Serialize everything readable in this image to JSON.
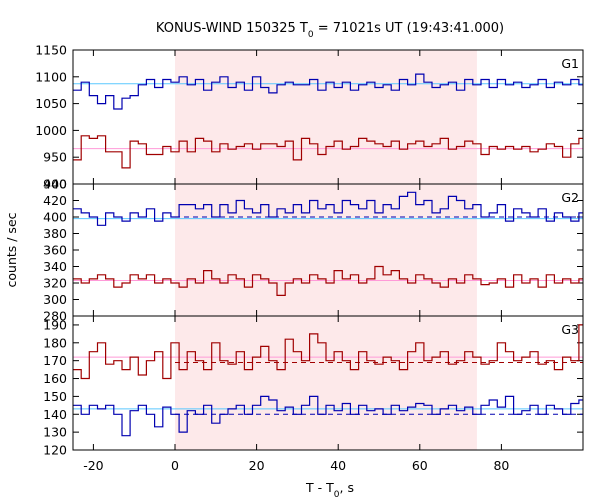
{
  "chart_data": {
    "type": "line",
    "title": "KONUS-WIND 150325 T",
    "title_sub": "0",
    "title_rest": " = 71021s UT (19:43:41.000)",
    "xlabel": "T - T",
    "xlabel_sub": "0",
    "xlabel_rest": ", s",
    "ylabel": "counts / sec",
    "xlim": [
      -25,
      100
    ],
    "x_ticks": [
      -20,
      0,
      20,
      40,
      60,
      80
    ],
    "shaded_interval": [
      0,
      74
    ],
    "colors": {
      "shade": "#fde9ea",
      "red_series": "#a00000",
      "red_background": "#ff9ad8",
      "blue_series": "#0000b0",
      "blue_background": "#5ac8ff"
    },
    "panels": [
      {
        "label": "G1",
        "ylim": [
          900,
          1150
        ],
        "y_ticks": [
          900,
          950,
          1000,
          1050,
          1100,
          1150
        ],
        "series": [
          {
            "color_key": "blue_series",
            "x": [
              -25,
              -23,
              -21,
              -19,
              -17,
              -15,
              -13,
              -11,
              -9,
              -7,
              -5,
              -3,
              -1,
              1,
              3,
              5,
              7,
              9,
              11,
              13,
              15,
              17,
              19,
              21,
              23,
              25,
              27,
              29,
              31,
              33,
              35,
              37,
              39,
              41,
              43,
              45,
              47,
              49,
              51,
              53,
              55,
              57,
              59,
              61,
              63,
              65,
              67,
              69,
              71,
              73,
              75,
              77,
              79,
              81,
              83,
              85,
              87,
              89,
              91,
              93,
              95,
              97,
              99
            ],
            "y": [
              1075,
              1090,
              1065,
              1050,
              1065,
              1040,
              1060,
              1065,
              1085,
              1095,
              1080,
              1095,
              1090,
              1100,
              1085,
              1095,
              1075,
              1090,
              1100,
              1080,
              1090,
              1075,
              1100,
              1080,
              1070,
              1085,
              1090,
              1085,
              1085,
              1095,
              1075,
              1090,
              1080,
              1090,
              1075,
              1085,
              1090,
              1080,
              1085,
              1075,
              1095,
              1085,
              1105,
              1090,
              1080,
              1085,
              1090,
              1075,
              1095,
              1085,
              1095,
              1080,
              1095,
              1085,
              1090,
              1080,
              1085,
              1095,
              1080,
              1090,
              1085,
              1095,
              1085
            ],
            "background": 1087,
            "background_color_key": "blue_background"
          },
          {
            "color_key": "red_series",
            "x": [
              -25,
              -23,
              -21,
              -19,
              -17,
              -15,
              -13,
              -11,
              -9,
              -7,
              -5,
              -3,
              -1,
              1,
              3,
              5,
              7,
              9,
              11,
              13,
              15,
              17,
              19,
              21,
              23,
              25,
              27,
              29,
              31,
              33,
              35,
              37,
              39,
              41,
              43,
              45,
              47,
              49,
              51,
              53,
              55,
              57,
              59,
              61,
              63,
              65,
              67,
              69,
              71,
              73,
              75,
              77,
              79,
              81,
              83,
              85,
              87,
              89,
              91,
              93,
              95,
              97,
              99
            ],
            "y": [
              945,
              990,
              985,
              990,
              960,
              960,
              930,
              980,
              975,
              955,
              955,
              970,
              960,
              980,
              960,
              985,
              980,
              960,
              975,
              965,
              970,
              975,
              965,
              975,
              975,
              970,
              980,
              945,
              985,
              975,
              955,
              970,
              980,
              965,
              970,
              985,
              980,
              975,
              970,
              980,
              965,
              975,
              980,
              970,
              975,
              985,
              965,
              970,
              980,
              975,
              955,
              970,
              965,
              970,
              965,
              970,
              960,
              965,
              975,
              970,
              950,
              975,
              985
            ],
            "background": 966,
            "background_color_key": "red_background"
          }
        ]
      },
      {
        "label": "G2",
        "ylim": [
          280,
          440
        ],
        "y_ticks": [
          280,
          300,
          320,
          340,
          360,
          380,
          400,
          420,
          440
        ],
        "series": [
          {
            "color_key": "blue_series",
            "x": [
              -25,
              -23,
              -21,
              -19,
              -17,
              -15,
              -13,
              -11,
              -9,
              -7,
              -5,
              -3,
              -1,
              1,
              3,
              5,
              7,
              9,
              11,
              13,
              15,
              17,
              19,
              21,
              23,
              25,
              27,
              29,
              31,
              33,
              35,
              37,
              39,
              41,
              43,
              45,
              47,
              49,
              51,
              53,
              55,
              57,
              59,
              61,
              63,
              65,
              67,
              69,
              71,
              73,
              75,
              77,
              79,
              81,
              83,
              85,
              87,
              89,
              91,
              93,
              95,
              97,
              99
            ],
            "y": [
              410,
              405,
              400,
              390,
              405,
              400,
              395,
              405,
              400,
              410,
              395,
              405,
              400,
              415,
              415,
              410,
              415,
              400,
              415,
              405,
              420,
              410,
              405,
              415,
              400,
              410,
              405,
              415,
              405,
              420,
              410,
              415,
              405,
              420,
              415,
              410,
              420,
              405,
              415,
              410,
              425,
              430,
              415,
              420,
              405,
              410,
              425,
              420,
              410,
              415,
              400,
              405,
              415,
              395,
              410,
              405,
              400,
              410,
              395,
              405,
              400,
              395,
              405
            ],
            "background": 398,
            "background_color_key": "blue_background",
            "dashed_mean": 400
          },
          {
            "color_key": "red_series",
            "x": [
              -25,
              -23,
              -21,
              -19,
              -17,
              -15,
              -13,
              -11,
              -9,
              -7,
              -5,
              -3,
              -1,
              1,
              3,
              5,
              7,
              9,
              11,
              13,
              15,
              17,
              19,
              21,
              23,
              25,
              27,
              29,
              31,
              33,
              35,
              37,
              39,
              41,
              43,
              45,
              47,
              49,
              51,
              53,
              55,
              57,
              59,
              61,
              63,
              65,
              67,
              69,
              71,
              73,
              75,
              77,
              79,
              81,
              83,
              85,
              87,
              89,
              91,
              93,
              95,
              97,
              99
            ],
            "y": [
              325,
              320,
              325,
              330,
              325,
              315,
              320,
              330,
              325,
              330,
              320,
              325,
              320,
              315,
              325,
              320,
              335,
              325,
              320,
              330,
              325,
              315,
              330,
              325,
              320,
              305,
              320,
              325,
              320,
              330,
              325,
              320,
              335,
              325,
              330,
              320,
              325,
              340,
              330,
              335,
              325,
              320,
              330,
              325,
              320,
              315,
              325,
              320,
              330,
              325,
              318,
              320,
              325,
              315,
              330,
              320,
              325,
              315,
              330,
              320,
              325,
              320,
              325
            ],
            "background": 323,
            "background_color_key": "red_background"
          }
        ]
      },
      {
        "label": "G3",
        "ylim": [
          120,
          195
        ],
        "y_ticks": [
          120,
          130,
          140,
          150,
          160,
          170,
          180,
          190
        ],
        "series": [
          {
            "color_key": "red_series",
            "x": [
              -25,
              -23,
              -21,
              -19,
              -17,
              -15,
              -13,
              -11,
              -9,
              -7,
              -5,
              -3,
              -1,
              1,
              3,
              5,
              7,
              9,
              11,
              13,
              15,
              17,
              19,
              21,
              23,
              25,
              27,
              29,
              31,
              33,
              35,
              37,
              39,
              41,
              43,
              45,
              47,
              49,
              51,
              53,
              55,
              57,
              59,
              61,
              63,
              65,
              67,
              69,
              71,
              73,
              75,
              77,
              79,
              81,
              83,
              85,
              87,
              89,
              91,
              93,
              95,
              97,
              99
            ],
            "y": [
              165,
              160,
              175,
              180,
              168,
              170,
              165,
              172,
              162,
              170,
              175,
              160,
              180,
              165,
              175,
              170,
              165,
              180,
              170,
              168,
              175,
              165,
              172,
              178,
              170,
              165,
              182,
              175,
              170,
              185,
              180,
              170,
              175,
              170,
              165,
              175,
              170,
              168,
              172,
              170,
              165,
              175,
              180,
              170,
              172,
              175,
              168,
              170,
              175,
              172,
              168,
              170,
              180,
              175,
              170,
              172,
              175,
              168,
              170,
              165,
              172,
              170,
              190
            ],
            "background": 172,
            "background_color_key": "red_background",
            "dashed_mean": 169
          },
          {
            "color_key": "blue_series",
            "x": [
              -25,
              -23,
              -21,
              -19,
              -17,
              -15,
              -13,
              -11,
              -9,
              -7,
              -5,
              -3,
              -1,
              1,
              3,
              5,
              7,
              9,
              11,
              13,
              15,
              17,
              19,
              21,
              23,
              25,
              27,
              29,
              31,
              33,
              35,
              37,
              39,
              41,
              43,
              45,
              47,
              49,
              51,
              53,
              55,
              57,
              59,
              61,
              63,
              65,
              67,
              69,
              71,
              73,
              75,
              77,
              79,
              81,
              83,
              85,
              87,
              89,
              91,
              93,
              95,
              97,
              99
            ],
            "y": [
              145,
              140,
              145,
              143,
              145,
              140,
              128,
              142,
              145,
              140,
              133,
              144,
              140,
              130,
              142,
              140,
              145,
              135,
              140,
              143,
              145,
              140,
              145,
              150,
              148,
              142,
              144,
              140,
              145,
              150,
              140,
              145,
              142,
              146,
              140,
              145,
              142,
              143,
              140,
              145,
              142,
              144,
              146,
              145,
              140,
              143,
              145,
              142,
              144,
              140,
              145,
              148,
              144,
              150,
              140,
              142,
              145,
              140,
              145,
              143,
              140,
              146,
              148
            ],
            "background": 143,
            "background_color_key": "blue_background",
            "dashed_mean": 140
          }
        ]
      }
    ]
  }
}
